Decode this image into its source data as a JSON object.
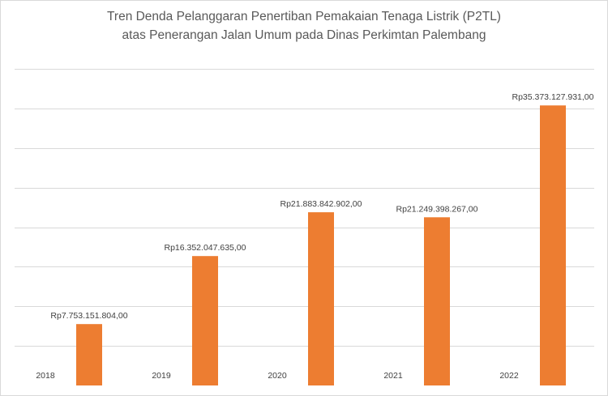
{
  "chart_data": {
    "type": "bar",
    "title_lines": [
      "Tren Denda Pelanggaran Penertiban Pemakaian Tenaga Listrik (P2TL)",
      "atas Penerangan Jalan Umum pada Dinas Perkimtan Palembang"
    ],
    "categories": [
      "2018",
      "2019",
      "2020",
      "2021",
      "2022"
    ],
    "values": [
      7753151804,
      16352047635,
      21883842902,
      21249398267,
      35373127931
    ],
    "data_labels": [
      "Rp7.753.151.804,00",
      "Rp16.352.047.635,00",
      "Rp21.883.842.902,00",
      "Rp21.249.398.267,00",
      "Rp35.373.127.931,00"
    ],
    "xlabel": "",
    "ylabel": "",
    "ylim": [
      0,
      40000000000
    ],
    "gridlines": true,
    "legend": "none",
    "colors": {
      "bar": "#ed7d31",
      "grid": "#d9d9d9",
      "text": "#404040",
      "title": "#595959"
    }
  }
}
